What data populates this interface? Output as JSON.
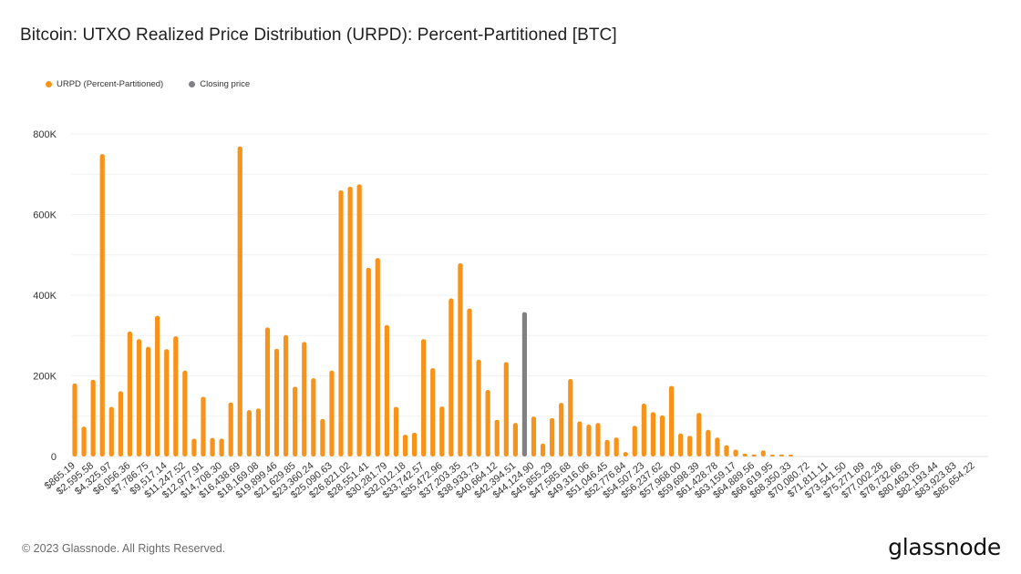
{
  "title": "Bitcoin: UTXO Realized Price Distribution (URPD): Percent-Partitioned [BTC]",
  "legend": [
    {
      "label": "URPD (Percent-Partitioned)",
      "color": "#f7931a"
    },
    {
      "label": "Closing price",
      "color": "#808085"
    }
  ],
  "footer": {
    "copyright": "© 2023 Glassnode. All Rights Reserved.",
    "logo": "glassnode"
  },
  "chart_data": {
    "type": "bar",
    "title": "Bitcoin: UTXO Realized Price Distribution (URPD): Percent-Partitioned [BTC]",
    "xlabel": "",
    "ylabel": "",
    "ylim": [
      0,
      800000
    ],
    "yticks": [
      0,
      200000,
      400000,
      600000,
      800000
    ],
    "ytick_labels": [
      "0",
      "200K",
      "400K",
      "600K",
      "800K"
    ],
    "grid": true,
    "grid_step": 100000,
    "legend_position": "top-left",
    "bin_start": 865.19,
    "bin_width": 865.195,
    "closing_price_bin_index": 49,
    "x_tick_labels": [
      "$865.19",
      "$2,595.58",
      "$4,325.97",
      "$6,056.36",
      "$7,786.75",
      "$9,517.14",
      "$11,247.52",
      "$12,977.91",
      "$14,708.30",
      "$16,438.69",
      "$18,169.08",
      "$19,899.46",
      "$21,629.85",
      "$23,360.24",
      "$25,090.63",
      "$26,821.02",
      "$28,551.41",
      "$30,281.79",
      "$32,012.18",
      "$33,742.57",
      "$35,472.96",
      "$37,203.35",
      "$38,933.73",
      "$40,664.12",
      "$42,394.51",
      "$44,124.90",
      "$45,855.29",
      "$47,585.68",
      "$49,316.06",
      "$51,046.45",
      "$52,776.84",
      "$54,507.23",
      "$56,237.62",
      "$57,968.00",
      "$59,698.39",
      "$61,428.78",
      "$63,159.17",
      "$64,889.56",
      "$66,619.95",
      "$68,350.33",
      "$70,080.72",
      "$71,811.11",
      "$73,541.50",
      "$75,271.89",
      "$77,002.28",
      "$78,732.66",
      "$80,463.05",
      "$82,193.44",
      "$83,923.83",
      "$85,654.22"
    ],
    "series": [
      {
        "name": "URPD (Percent-Partitioned)",
        "color": "#f7931a",
        "values": [
          181000,
          74000,
          190000,
          750000,
          123000,
          162000,
          310000,
          291000,
          272000,
          349000,
          266000,
          298000,
          213000,
          44000,
          148000,
          46000,
          44000,
          134000,
          769000,
          115000,
          119000,
          320000,
          267000,
          301000,
          173000,
          284000,
          194000,
          93000,
          213000,
          660000,
          669000,
          675000,
          468000,
          492000,
          326000,
          123000,
          54000,
          59000,
          291000,
          219000,
          124000,
          392000,
          479000,
          367000,
          240000,
          165000,
          91000,
          234000,
          83000,
          0,
          99000,
          32000,
          95000,
          133000,
          192000,
          87000,
          79000,
          83000,
          41000,
          47000,
          11000,
          76000,
          131000,
          110000,
          102000,
          175000,
          57000,
          51000,
          108000,
          66000,
          47000,
          28000,
          17000,
          7000,
          5000,
          15000,
          2000,
          5000,
          1000,
          0,
          0,
          0,
          0,
          0,
          0,
          0,
          0,
          0,
          0,
          0,
          0,
          0,
          0,
          0,
          0,
          0,
          0,
          0,
          0,
          0
        ]
      },
      {
        "name": "Closing price",
        "color": "#808085",
        "bin_index": 49,
        "value": 358000
      }
    ]
  }
}
